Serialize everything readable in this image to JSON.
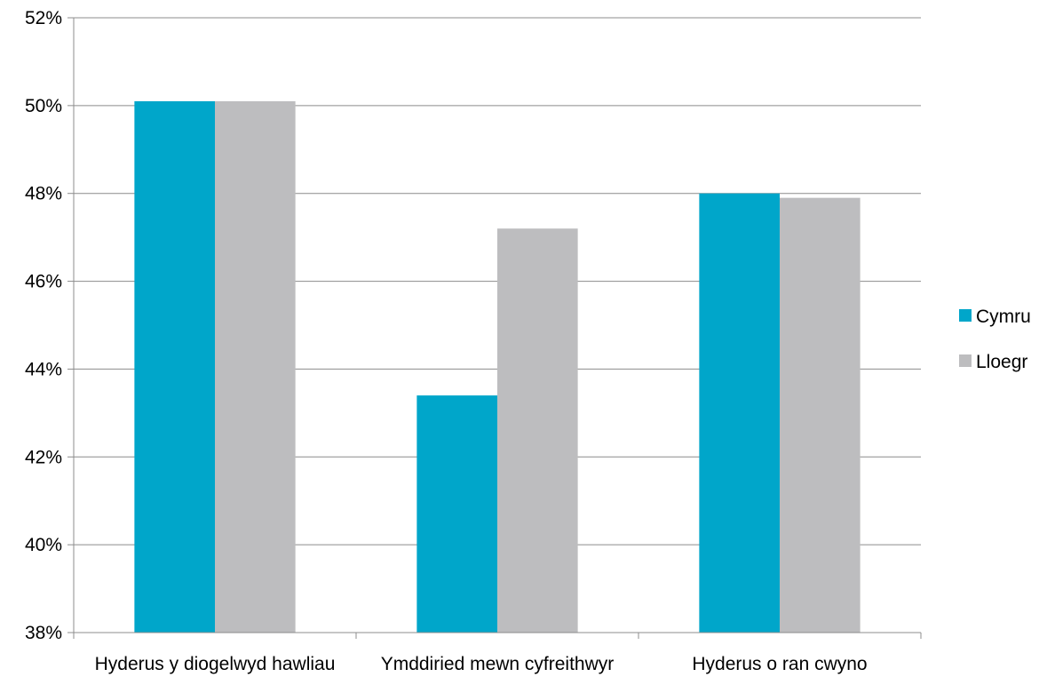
{
  "chart_data": {
    "type": "bar",
    "title": "",
    "xlabel": "",
    "ylabel": "",
    "categories": [
      "Hyderus y diogelwyd hawliau",
      "Ymddiried mewn cyfreithwyr",
      "Hyderus o ran cwyno"
    ],
    "series": [
      {
        "name": "Cymru",
        "color": "#00A6CA",
        "values": [
          50.1,
          43.4,
          48.0
        ]
      },
      {
        "name": "Lloegr",
        "color": "#BDBDBF",
        "values": [
          50.1,
          47.2,
          47.9
        ]
      }
    ],
    "ylim": [
      38,
      52
    ],
    "yticks": [
      38,
      40,
      42,
      44,
      46,
      48,
      50,
      52
    ],
    "ytick_labels": [
      "38%",
      "40%",
      "42%",
      "44%",
      "46%",
      "48%",
      "50%",
      "52%"
    ],
    "unit": "%",
    "grid": true,
    "legend_position": "right"
  }
}
